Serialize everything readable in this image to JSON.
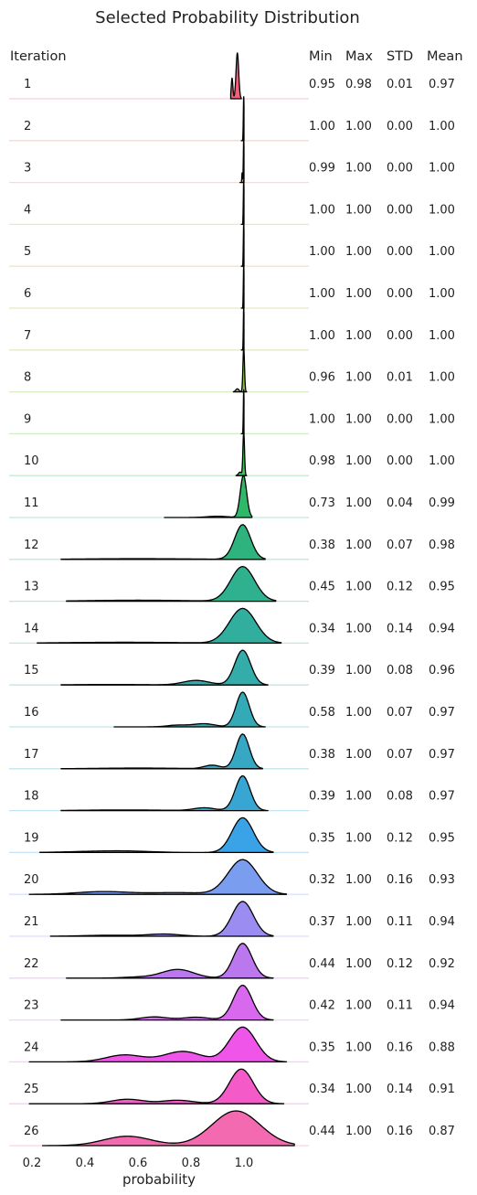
{
  "chart_data": {
    "type": "ridgeline",
    "title": "Selected Probability Distribution",
    "xlabel": "probability",
    "row_header": "Iteration",
    "column_headers": [
      "Min",
      "Max",
      "STD",
      "Mean"
    ],
    "x_ticks": [
      "0.2",
      "0.4",
      "0.6",
      "0.8",
      "1.0"
    ],
    "xlim": [
      0.1,
      1.25
    ],
    "rows": [
      {
        "iteration": "1",
        "min": "0.95",
        "max": "0.98",
        "std": "0.01",
        "mean": "0.97",
        "color": "#f0607a"
      },
      {
        "iteration": "2",
        "min": "1.00",
        "max": "1.00",
        "std": "0.00",
        "mean": "1.00",
        "color": "#f07a68"
      },
      {
        "iteration": "3",
        "min": "0.99",
        "max": "1.00",
        "std": "0.00",
        "mean": "1.00",
        "color": "#ea8a4e"
      },
      {
        "iteration": "4",
        "min": "1.00",
        "max": "1.00",
        "std": "0.00",
        "mean": "1.00",
        "color": "#df9a3c"
      },
      {
        "iteration": "5",
        "min": "1.00",
        "max": "1.00",
        "std": "0.00",
        "mean": "1.00",
        "color": "#cfa63a"
      },
      {
        "iteration": "6",
        "min": "1.00",
        "max": "1.00",
        "std": "0.00",
        "mean": "1.00",
        "color": "#bcb13a"
      },
      {
        "iteration": "7",
        "min": "1.00",
        "max": "1.00",
        "std": "0.00",
        "mean": "1.00",
        "color": "#a3b93a"
      },
      {
        "iteration": "8",
        "min": "0.96",
        "max": "1.00",
        "std": "0.01",
        "mean": "1.00",
        "color": "#86bf3e"
      },
      {
        "iteration": "9",
        "min": "1.00",
        "max": "1.00",
        "std": "0.00",
        "mean": "1.00",
        "color": "#62c248"
      },
      {
        "iteration": "10",
        "min": "0.98",
        "max": "1.00",
        "std": "0.00",
        "mean": "1.00",
        "color": "#3fc15a"
      },
      {
        "iteration": "11",
        "min": "0.73",
        "max": "1.00",
        "std": "0.04",
        "mean": "0.99",
        "color": "#2fb86a"
      },
      {
        "iteration": "12",
        "min": "0.38",
        "max": "1.00",
        "std": "0.07",
        "mean": "0.98",
        "color": "#2fb37e"
      },
      {
        "iteration": "13",
        "min": "0.45",
        "max": "1.00",
        "std": "0.12",
        "mean": "0.95",
        "color": "#2fb08f"
      },
      {
        "iteration": "14",
        "min": "0.34",
        "max": "1.00",
        "std": "0.14",
        "mean": "0.94",
        "color": "#31ae9e"
      },
      {
        "iteration": "15",
        "min": "0.39",
        "max": "1.00",
        "std": "0.08",
        "mean": "0.96",
        "color": "#33acaa"
      },
      {
        "iteration": "16",
        "min": "0.58",
        "max": "1.00",
        "std": "0.07",
        "mean": "0.97",
        "color": "#34aab6"
      },
      {
        "iteration": "17",
        "min": "0.38",
        "max": "1.00",
        "std": "0.07",
        "mean": "0.97",
        "color": "#36a8c3"
      },
      {
        "iteration": "18",
        "min": "0.39",
        "max": "1.00",
        "std": "0.08",
        "mean": "0.97",
        "color": "#38a6d2"
      },
      {
        "iteration": "19",
        "min": "0.35",
        "max": "1.00",
        "std": "0.12",
        "mean": "0.95",
        "color": "#3aa3e8"
      },
      {
        "iteration": "20",
        "min": "0.32",
        "max": "1.00",
        "std": "0.16",
        "mean": "0.93",
        "color": "#7a9df0"
      },
      {
        "iteration": "21",
        "min": "0.37",
        "max": "1.00",
        "std": "0.11",
        "mean": "0.94",
        "color": "#9a8cf0"
      },
      {
        "iteration": "22",
        "min": "0.44",
        "max": "1.00",
        "std": "0.12",
        "mean": "0.92",
        "color": "#bb77ee"
      },
      {
        "iteration": "23",
        "min": "0.42",
        "max": "1.00",
        "std": "0.11",
        "mean": "0.94",
        "color": "#d868ee"
      },
      {
        "iteration": "24",
        "min": "0.35",
        "max": "1.00",
        "std": "0.16",
        "mean": "0.88",
        "color": "#f055ea"
      },
      {
        "iteration": "25",
        "min": "0.34",
        "max": "1.00",
        "std": "0.14",
        "mean": "0.91",
        "color": "#f45ac8"
      },
      {
        "iteration": "26",
        "min": "0.44",
        "max": "1.00",
        "std": "0.16",
        "mean": "0.87",
        "color": "#f46ab0"
      }
    ]
  }
}
